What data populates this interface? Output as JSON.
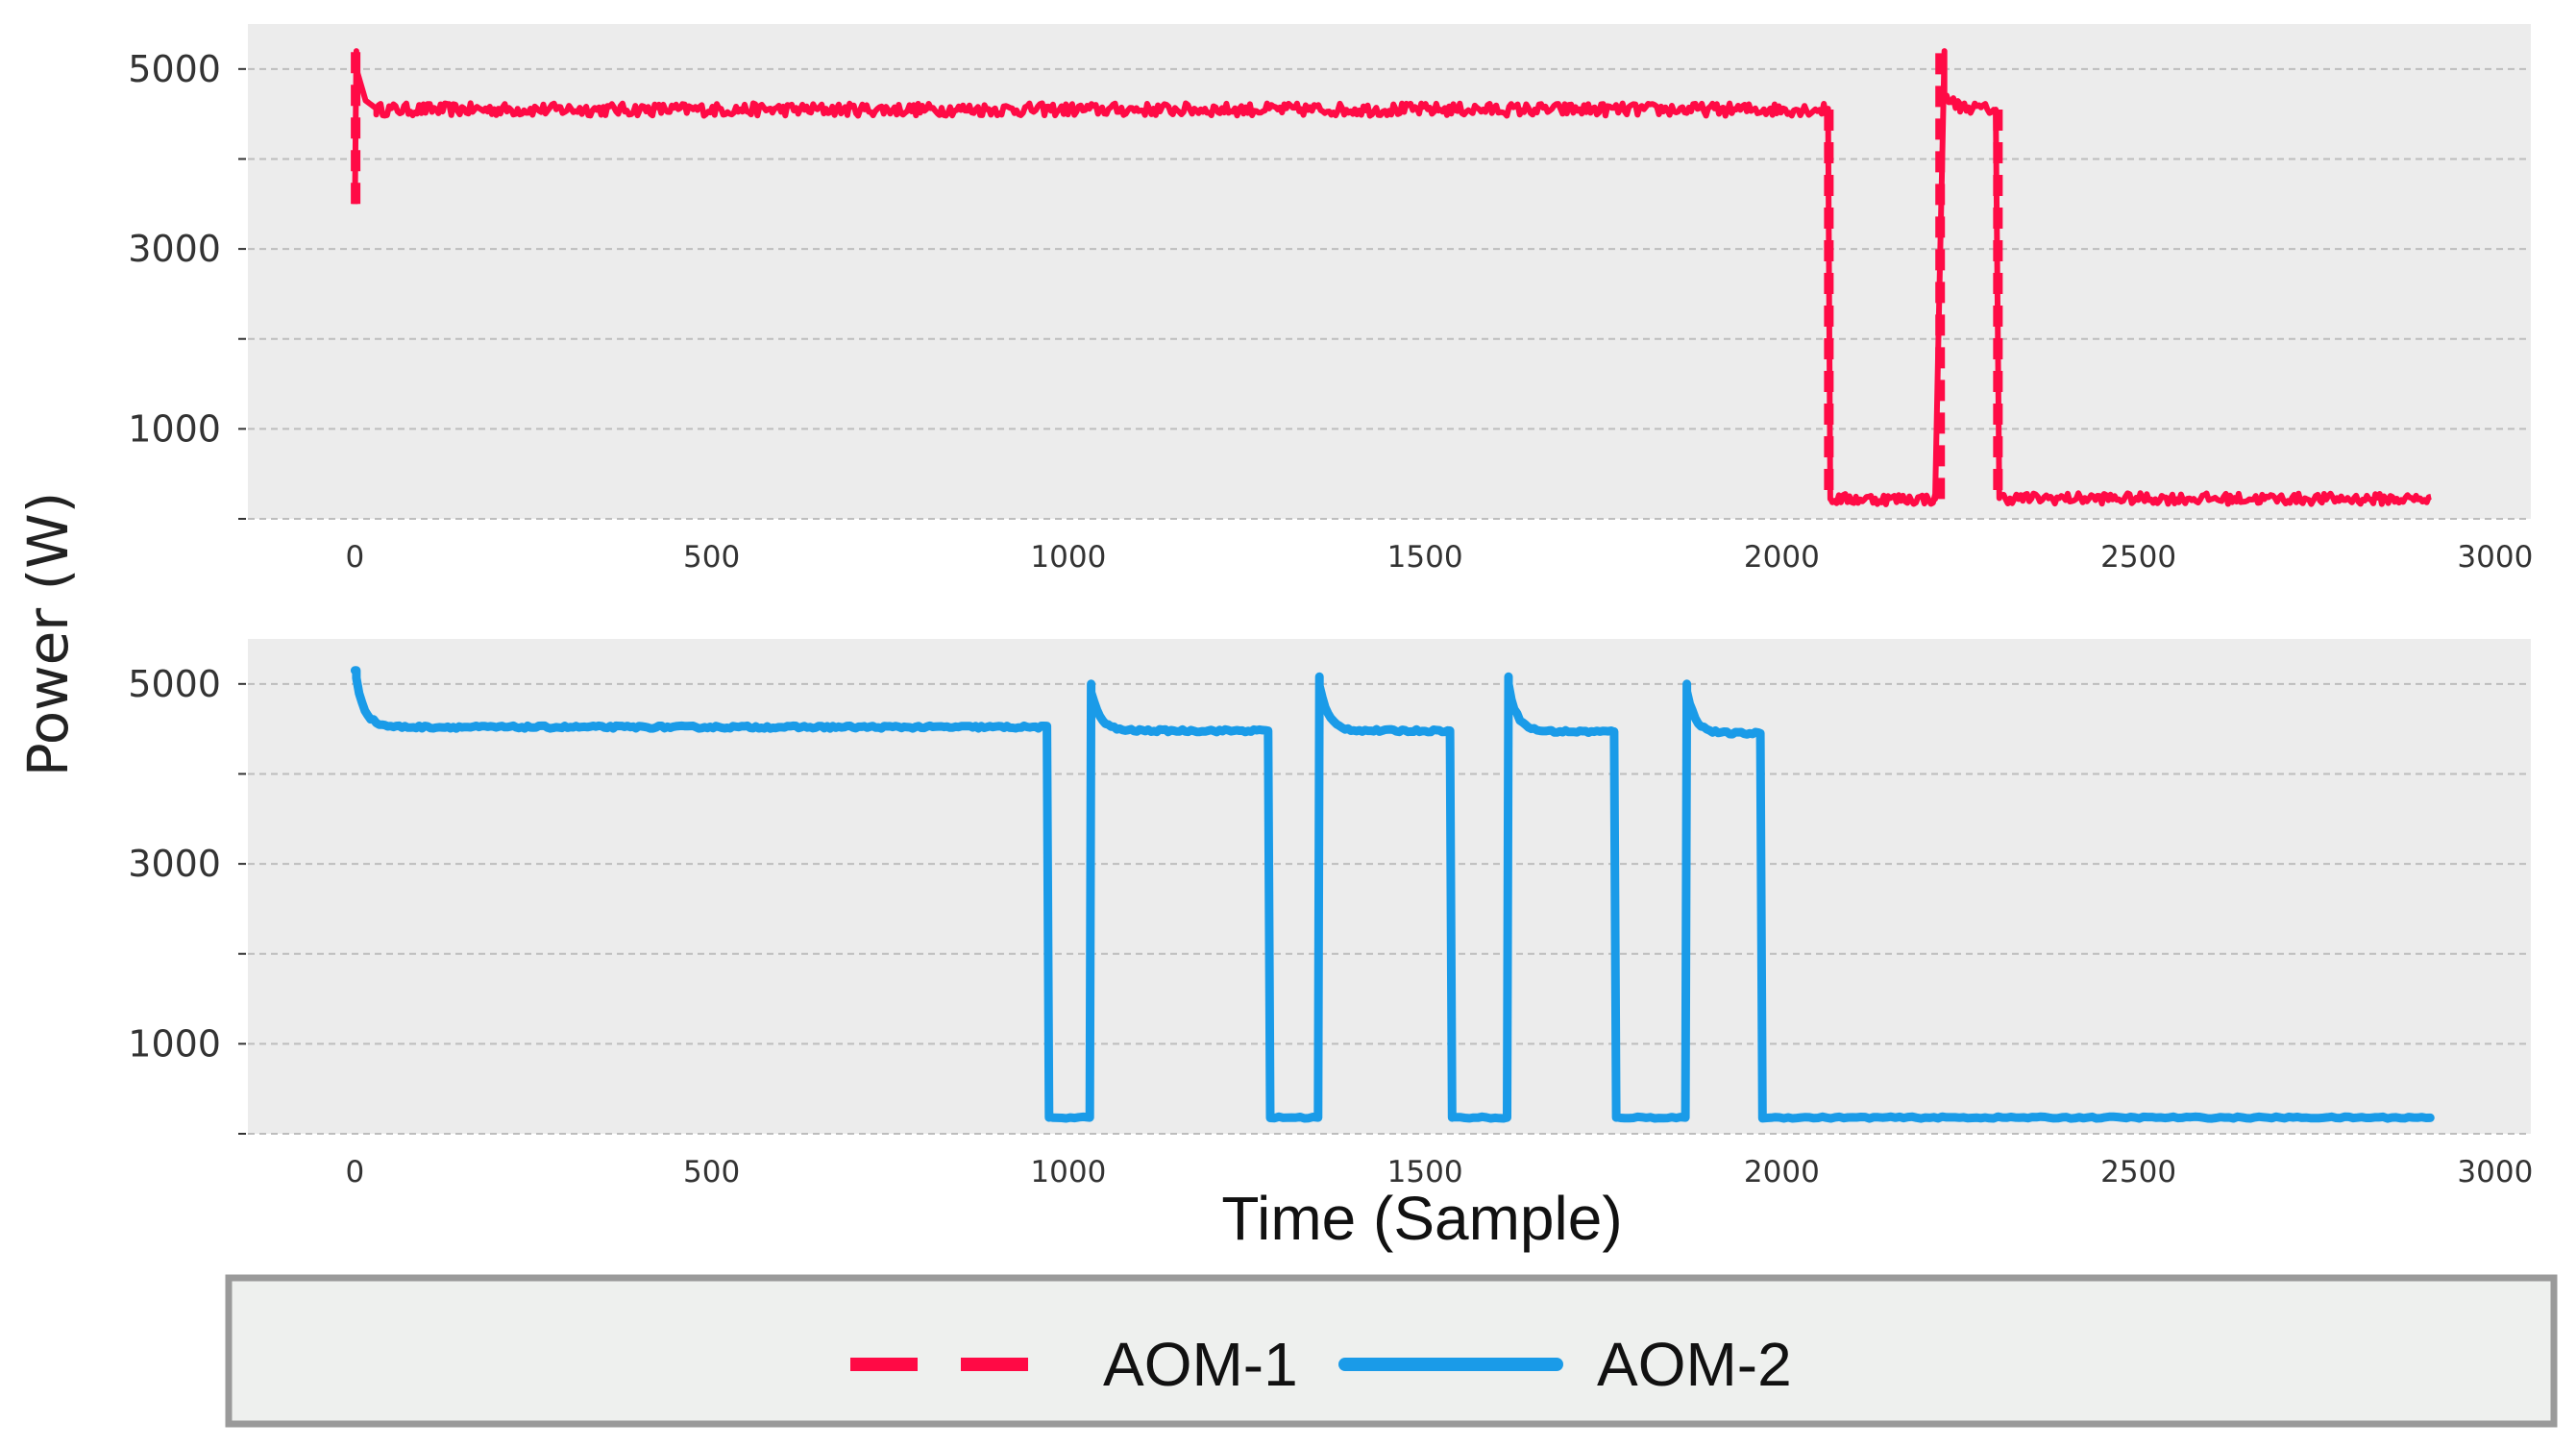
{
  "figure": {
    "ylabel": "Power  (W)",
    "xlabel": "Time (Sample)"
  },
  "colors": {
    "aom1": "#ff0a45",
    "aom2": "#1a9be8",
    "panel_bg": "#ececec",
    "grid": "#bdbdbd",
    "legend_bg": "#eef0ee",
    "legend_border": "#9a9a9a"
  },
  "legend": {
    "entries": [
      {
        "label": "AOM-1",
        "style": "dashed",
        "color": "#ff0a45"
      },
      {
        "label": "AOM-2",
        "style": "solid",
        "color": "#1a9be8"
      }
    ]
  },
  "chart_data": [
    {
      "type": "line",
      "series_name": "AOM-1",
      "line_style": "dashed",
      "color": "#ff0a45",
      "xlim": [
        -150,
        3050
      ],
      "ylim": [
        0,
        5500
      ],
      "xticks": [
        0,
        500,
        1000,
        1500,
        2000,
        2500,
        3000
      ],
      "yticks_labeled": [
        1000,
        3000,
        5000
      ],
      "yticks_minor": [
        0,
        2000,
        4000
      ],
      "grid": true,
      "segments": [
        {
          "x": [
            0,
            2
          ],
          "y": [
            3500,
            5200
          ]
        },
        {
          "x": [
            2,
            15,
            30
          ],
          "y": [
            5000,
            4650,
            4560
          ]
        },
        {
          "x": [
            30,
            2065
          ],
          "y": [
            4550,
            4550
          ],
          "noise": 70
        },
        {
          "x": [
            2065,
            2068
          ],
          "y": [
            4550,
            220
          ]
        },
        {
          "x": [
            2068,
            2215
          ],
          "y": [
            220,
            220
          ],
          "noise": 60
        },
        {
          "x": [
            2215,
            2228
          ],
          "y": [
            220,
            5200
          ]
        },
        {
          "x": [
            2228,
            2250,
            2300
          ],
          "y": [
            4700,
            4580,
            4550
          ],
          "noise": 60
        },
        {
          "x": [
            2300,
            2305
          ],
          "y": [
            4550,
            230
          ]
        },
        {
          "x": [
            2305,
            2910
          ],
          "y": [
            230,
            220
          ],
          "noise": 60
        }
      ]
    },
    {
      "type": "line",
      "series_name": "AOM-2",
      "line_style": "solid",
      "color": "#1a9be8",
      "xlim": [
        -150,
        3050
      ],
      "ylim": [
        0,
        5500
      ],
      "xticks": [
        0,
        500,
        1000,
        1500,
        2000,
        2500,
        3000
      ],
      "yticks_labeled": [
        1000,
        3000,
        5000
      ],
      "yticks_minor": [
        0,
        2000,
        4000
      ],
      "grid": true,
      "on_periods": [
        {
          "start": 0,
          "end": 970,
          "peak": 5150,
          "level": 4520
        },
        {
          "start": 1030,
          "end": 1280,
          "peak": 5000,
          "level": 4480
        },
        {
          "start": 1350,
          "end": 1535,
          "peak": 5080,
          "level": 4480
        },
        {
          "start": 1615,
          "end": 1765,
          "peak": 5080,
          "level": 4470
        },
        {
          "start": 1865,
          "end": 1970,
          "peak": 5000,
          "level": 4450
        }
      ],
      "off_level": 180,
      "x_end": 2910
    }
  ]
}
